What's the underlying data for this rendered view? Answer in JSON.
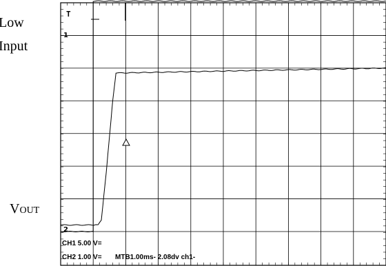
{
  "labels": {
    "channel1_line1": "Low",
    "channel1_line2": "Input",
    "vout_main": "V",
    "vout_sub": "OUT"
  },
  "scope": {
    "trigger_mark": "T",
    "ch1_marker": "1",
    "ch2_marker": "2",
    "ch1_setting": "CH1 5.00 V=",
    "ch2_setting": "CH2 1.00 V=",
    "timebase": "MTB1.00ms- 2.08dv ch1-"
  },
  "chart_data": {
    "type": "line",
    "title": "",
    "xlabel": "",
    "ylabel": "",
    "x_divisions": 10,
    "y_divisions": 8,
    "grid": true,
    "series": [
      {
        "name": "Low Input",
        "x": [
          0,
          1.0,
          1.0,
          10.0
        ],
        "y": [
          0,
          0,
          7.05,
          7.05
        ]
      },
      {
        "name": "VOUT",
        "x": [
          0,
          1.05,
          1.15,
          1.25,
          1.4,
          1.6,
          1.7,
          10.0
        ],
        "y": [
          0.2,
          0.2,
          0.2,
          0.35,
          1.8,
          4.0,
          4.85,
          5.0
        ]
      }
    ]
  }
}
